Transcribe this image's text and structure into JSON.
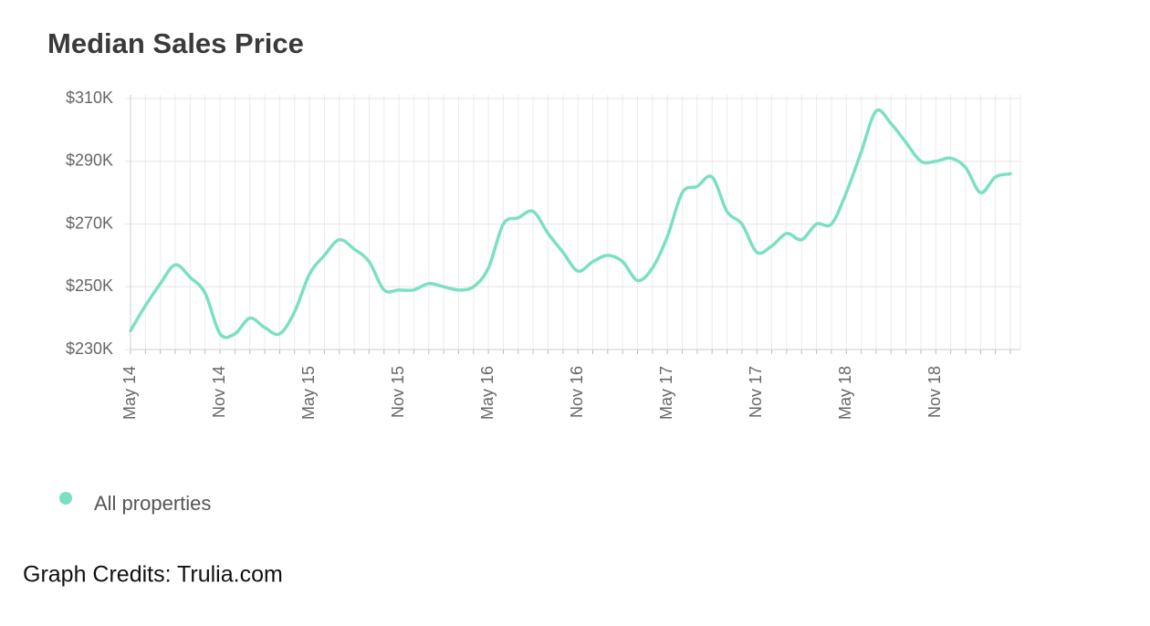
{
  "chart_data": {
    "type": "line",
    "title": "Median Sales Price",
    "categories": [
      "May 14",
      null,
      null,
      null,
      null,
      null,
      "Nov 14",
      null,
      null,
      null,
      null,
      null,
      "May 15",
      null,
      null,
      null,
      null,
      null,
      "Nov 15",
      null,
      null,
      null,
      null,
      null,
      "May 16",
      null,
      null,
      null,
      null,
      null,
      "Nov 16",
      null,
      null,
      null,
      null,
      null,
      "May 17",
      null,
      null,
      null,
      null,
      null,
      "Nov 17",
      null,
      null,
      null,
      null,
      null,
      "May 18",
      null,
      null,
      null,
      null,
      null,
      "Nov 18",
      null,
      null,
      null,
      null,
      null
    ],
    "series": [
      {
        "name": "All properties",
        "color": "#7be0c3",
        "values": [
          236000,
          244000,
          251000,
          257000,
          253000,
          248000,
          235000,
          235000,
          240000,
          237000,
          235000,
          242000,
          254000,
          260000,
          265000,
          262000,
          258000,
          249000,
          249000,
          249000,
          251000,
          250000,
          249000,
          250000,
          256000,
          270000,
          272000,
          274000,
          267000,
          261000,
          255000,
          258000,
          260000,
          258000,
          252000,
          256000,
          266000,
          280000,
          282000,
          285000,
          274000,
          270000,
          261000,
          263000,
          267000,
          265000,
          270000,
          270000,
          280000,
          293000,
          306000,
          302000,
          296000,
          290000,
          290000,
          291000,
          288000,
          280000,
          285000,
          286000
        ]
      }
    ],
    "ylim": [
      230000,
      310000
    ],
    "yticks": [
      {
        "value": 230000,
        "label": "$230K"
      },
      {
        "value": 250000,
        "label": "$250K"
      },
      {
        "value": 270000,
        "label": "$270K"
      },
      {
        "value": 290000,
        "label": "$290K"
      },
      {
        "value": 310000,
        "label": "$310K"
      }
    ],
    "grid": true
  },
  "footer": {
    "credit": "Graph Credits: Trulia.com"
  }
}
